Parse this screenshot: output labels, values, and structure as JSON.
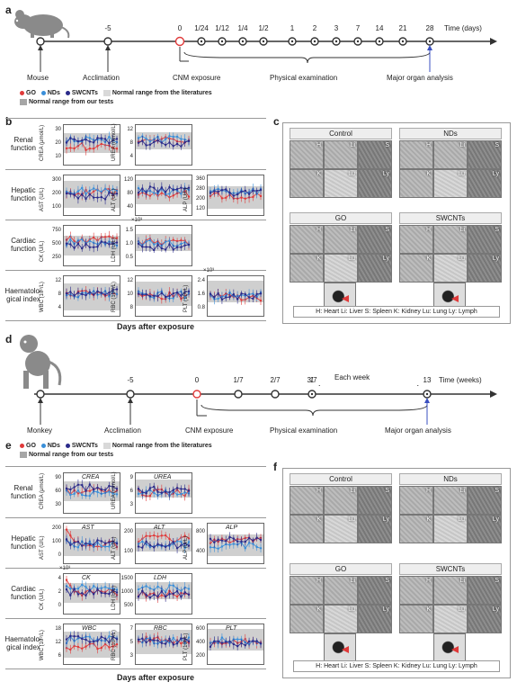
{
  "panels": {
    "a": "a",
    "b": "b",
    "c": "c",
    "d": "d",
    "e": "e",
    "f": "f"
  },
  "timeline_a": {
    "ticks": [
      "-5",
      "0",
      "1/24",
      "1/12",
      "1/4",
      "1/2",
      "1",
      "2",
      "3",
      "7",
      "14",
      "21",
      "28"
    ],
    "unit": "Time (days)",
    "labels": {
      "subject": "Mouse",
      "acclimation": "Acclimation",
      "exposure": "CNM exposure",
      "exam": "Physical examination",
      "organ": "Major organ analysis"
    }
  },
  "timeline_d": {
    "ticks": [
      "-5",
      "0",
      "1/7",
      "2/7",
      "3/7",
      "1",
      "13"
    ],
    "each_week": "Each week",
    "unit": "Time (weeks)",
    "labels": {
      "subject": "Monkey",
      "acclimation": "Acclimation",
      "exposure": "CNM exposure",
      "exam": "Physical examination",
      "organ": "Major organ analysis"
    }
  },
  "legend": {
    "go": "GO",
    "nds": "NDs",
    "swcnts": "SWCNTs",
    "normal_lit": "Normal range from the literatures",
    "normal_tests": "Normal range from our tests",
    "colors": {
      "go": "#e03a3a",
      "nds": "#3a8fd9",
      "swcnts": "#2a2a8a",
      "band_lit": "#d9d9d9",
      "band_tests": "#a6a6a6"
    }
  },
  "panel_b": {
    "rows": [
      "Renal function",
      "Hepatic function",
      "Cardiac function",
      "Haematolo-gical index"
    ],
    "xlabel": "Days after exposure",
    "plots": [
      {
        "ylabel": "CREA (μmol/L)",
        "ticks": [
          "30",
          "20",
          "10"
        ]
      },
      {
        "ylabel": "UREA (mmol/L)",
        "ticks": [
          "12",
          "8",
          "4"
        ]
      },
      {
        "ylabel": "AST (U/L)",
        "ticks": [
          "300",
          "200",
          "100"
        ]
      },
      {
        "ylabel": "ALT (U/L)",
        "ticks": [
          "120",
          "80",
          "40"
        ]
      },
      {
        "ylabel": "ALP (U/L)",
        "ticks": [
          "360",
          "280",
          "200",
          "120"
        ]
      },
      {
        "ylabel": "CK (U/L)",
        "ticks": [
          "750",
          "500",
          "250"
        ]
      },
      {
        "ylabel": "LDH (U/L)",
        "ticks": [
          "1.5",
          "1.0",
          "0.5"
        ],
        "mult": "×10³"
      },
      {
        "ylabel": "WBC (10⁹/L)",
        "ticks": [
          "12",
          "8",
          "4"
        ]
      },
      {
        "ylabel": "RBC (10¹²/L)",
        "ticks": [
          "12",
          "10",
          "8"
        ]
      },
      {
        "ylabel": "PLT (10⁹/L)",
        "ticks": [
          "2.4",
          "1.6",
          "0.8"
        ],
        "mult": "×10³"
      }
    ]
  },
  "panel_c": {
    "groups": [
      "Control",
      "NDs",
      "GO",
      "SWCNTs"
    ],
    "tiles": [
      "H",
      "Li",
      "S",
      "K",
      "Lu",
      "Ly"
    ],
    "caption": "H: Heart  Li: Liver  S: Spleen  K: Kidney  Lu: Lung  Ly: Lymph"
  },
  "panel_e": {
    "rows": [
      "Renal function",
      "Hepatic function",
      "Cardiac function",
      "Haematolo-gical index"
    ],
    "xlabel": "Days after exposure",
    "plots": [
      {
        "title": "CREA",
        "ylabel": "CREA (μmol/L)",
        "ticks": [
          "90",
          "60",
          "30"
        ]
      },
      {
        "title": "UREA",
        "ylabel": "UREA (mmol/L)",
        "ticks": [
          "9",
          "6",
          "3"
        ]
      },
      {
        "title": "AST",
        "ylabel": "AST (U/L)",
        "ticks": [
          "200",
          "100",
          "0"
        ]
      },
      {
        "title": "ALT",
        "ylabel": "ALT (U/L)",
        "ticks": [
          "200",
          "100"
        ]
      },
      {
        "title": "ALP",
        "ylabel": "ALP (U/L)",
        "ticks": [
          "800",
          "400"
        ]
      },
      {
        "title": "CK",
        "ylabel": "CK (U/L)",
        "ticks": [
          "4",
          "2",
          "0"
        ],
        "mult": "×10³"
      },
      {
        "title": "LDH",
        "ylabel": "LDH (U/L)",
        "ticks": [
          "1500",
          "1000",
          "500"
        ]
      },
      {
        "title": "WBC",
        "ylabel": "WBC (10⁹/L)",
        "ticks": [
          "18",
          "12",
          "6"
        ]
      },
      {
        "title": "RBC",
        "ylabel": "RBC (10¹²/L)",
        "ticks": [
          "7",
          "5",
          "3"
        ]
      },
      {
        "title": "PLT",
        "ylabel": "PLT (10⁹/L)",
        "ticks": [
          "600",
          "400",
          "200"
        ]
      }
    ]
  },
  "panel_f": {
    "groups": [
      "Control",
      "NDs",
      "GO",
      "SWCNTs"
    ],
    "tiles": [
      "H",
      "Li",
      "S",
      "K",
      "Lu",
      "Ly"
    ],
    "caption": "H: Heart  Li: Liver  S: Spleen  K: Kidney  Lu: Lung  Ly: Lymph"
  }
}
